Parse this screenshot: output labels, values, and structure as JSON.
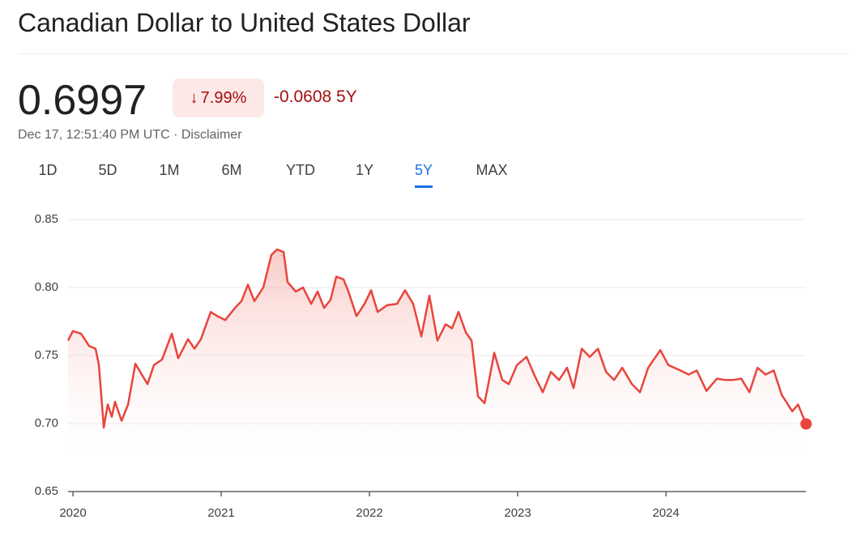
{
  "header": {
    "title": "Canadian Dollar to United States Dollar",
    "price": "0.6997",
    "change_percent": "7.99%",
    "change": "-0.0608 5Y",
    "timestamp": "Dec 17, 12:51:40 PM UTC · Disclaimer"
  },
  "tabs": {
    "items": [
      "1D",
      "5D",
      "1M",
      "6M",
      "YTD",
      "1Y",
      "5Y",
      "MAX"
    ],
    "selected": 6
  },
  "chart_data": {
    "type": "line",
    "x": [
      2019.967,
      2020.0,
      2020.055,
      2020.109,
      2020.153,
      2020.175,
      2020.208,
      2020.235,
      2020.262,
      2020.284,
      2020.328,
      2020.372,
      2020.421,
      2020.464,
      2020.503,
      2020.546,
      2020.601,
      2020.667,
      2020.71,
      2020.776,
      2020.82,
      2020.863,
      2020.929,
      2020.973,
      2021.027,
      2021.093,
      2021.137,
      2021.18,
      2021.224,
      2021.284,
      2021.339,
      2021.377,
      2021.421,
      2021.448,
      2021.503,
      2021.552,
      2021.607,
      2021.65,
      2021.694,
      2021.738,
      2021.776,
      2021.825,
      2021.858,
      2021.913,
      2021.967,
      2022.011,
      2022.055,
      2022.12,
      2022.186,
      2022.24,
      2022.295,
      2022.35,
      2022.404,
      2022.459,
      2022.514,
      2022.557,
      2022.601,
      2022.65,
      2022.689,
      2022.732,
      2022.776,
      2022.809,
      2022.842,
      2022.896,
      2022.94,
      2022.995,
      2023.06,
      2023.115,
      2023.169,
      2023.224,
      2023.279,
      2023.333,
      2023.377,
      2023.432,
      2023.486,
      2023.541,
      2023.596,
      2023.65,
      2023.705,
      2023.77,
      2023.825,
      2023.88,
      2023.962,
      2024.016,
      2024.098,
      2024.153,
      2024.208,
      2024.273,
      2024.344,
      2024.399,
      2024.454,
      2024.508,
      2024.563,
      2024.617,
      2024.672,
      2024.727,
      2024.781,
      2024.852,
      2024.891,
      2024.945
    ],
    "values": [
      0.761,
      0.768,
      0.766,
      0.757,
      0.755,
      0.743,
      0.697,
      0.714,
      0.705,
      0.716,
      0.702,
      0.714,
      0.744,
      0.736,
      0.729,
      0.743,
      0.747,
      0.766,
      0.748,
      0.762,
      0.755,
      0.762,
      0.782,
      0.779,
      0.776,
      0.785,
      0.79,
      0.802,
      0.79,
      0.8,
      0.824,
      0.828,
      0.826,
      0.804,
      0.797,
      0.8,
      0.788,
      0.797,
      0.785,
      0.791,
      0.808,
      0.806,
      0.797,
      0.779,
      0.788,
      0.798,
      0.782,
      0.787,
      0.788,
      0.798,
      0.788,
      0.764,
      0.794,
      0.761,
      0.773,
      0.77,
      0.782,
      0.767,
      0.761,
      0.72,
      0.715,
      0.733,
      0.752,
      0.732,
      0.729,
      0.743,
      0.749,
      0.735,
      0.723,
      0.738,
      0.732,
      0.741,
      0.726,
      0.755,
      0.749,
      0.755,
      0.738,
      0.732,
      0.741,
      0.729,
      0.723,
      0.741,
      0.754,
      0.743,
      0.739,
      0.736,
      0.739,
      0.724,
      0.733,
      0.732,
      0.732,
      0.733,
      0.723,
      0.741,
      0.736,
      0.739,
      0.721,
      0.709,
      0.714,
      0.6997
    ],
    "color": "#e8453c",
    "xlim": [
      2019.967,
      2024.945
    ],
    "xticks": [
      2020,
      2021,
      2022,
      2023,
      2024
    ],
    "ylim": [
      0.65,
      0.85
    ],
    "yticks": [
      0.85,
      {
        "value": 0.8,
        "label": "0.80"
      },
      0.75,
      {
        "value": 0.7,
        "label": "0.70"
      },
      0.65
    ],
    "grid": true
  }
}
